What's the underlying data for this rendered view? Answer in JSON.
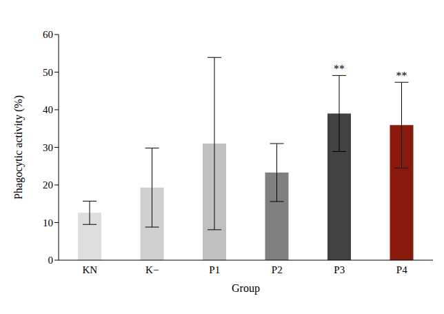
{
  "chart_data": {
    "type": "bar",
    "x_label": "Group",
    "y_label": "Phagocytic activity (%)",
    "categories": [
      "KN",
      "K−",
      "P1",
      "P2",
      "P3",
      "P4"
    ],
    "values": [
      12.6,
      19.3,
      31.0,
      23.3,
      39.0,
      35.9
    ],
    "errors": [
      3.1,
      10.5,
      22.9,
      7.7,
      10.1,
      11.4
    ],
    "colors": [
      "#dedede",
      "#cfcfcf",
      "#bfbfbf",
      "#808080",
      "#424242",
      "#8a1a0c"
    ],
    "ylim": [
      0,
      60
    ],
    "yticks": [
      0,
      10,
      20,
      30,
      40,
      50,
      60
    ],
    "grid": false,
    "annotations": [
      {
        "category": "P3",
        "text": "**"
      },
      {
        "category": "P4",
        "text": "**"
      }
    ]
  }
}
